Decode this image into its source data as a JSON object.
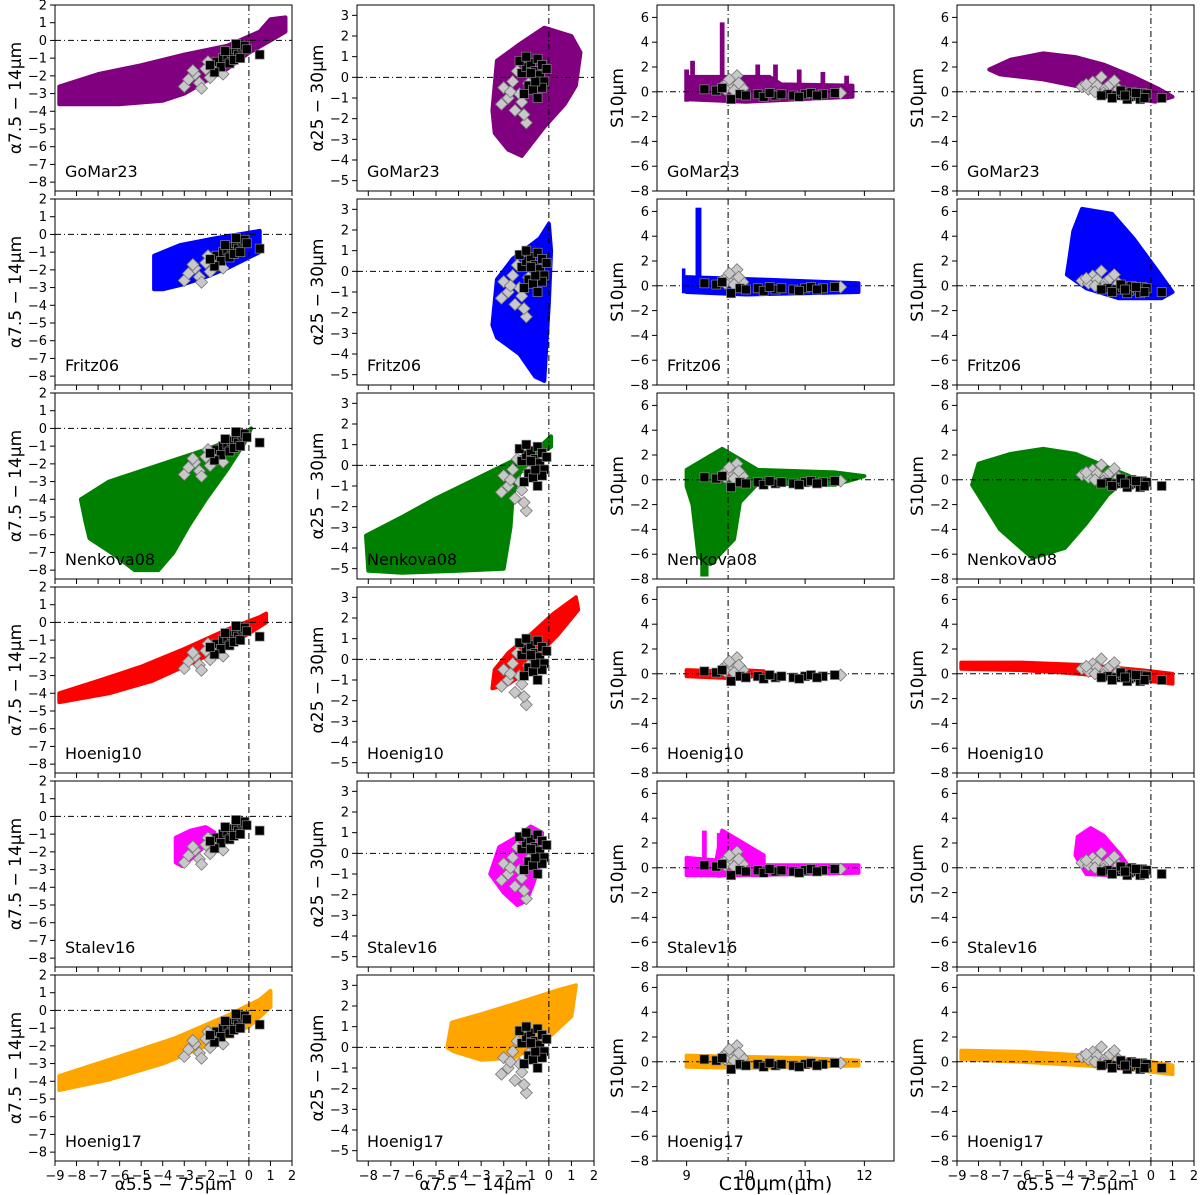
{
  "figure": {
    "model_labels": [
      "GoMar23",
      "Fritz06",
      "Nenkova08",
      "Hoenig10",
      "Stalev16",
      "Hoenig17"
    ],
    "model_colors": [
      "#800080",
      "#0000ff",
      "#008000",
      "#ff0000",
      "#ff00ff",
      "#ffa500"
    ],
    "observed_symbols": {
      "squares": "#000000",
      "diamonds": "#c8c8c8"
    }
  },
  "chart_data": [
    {
      "type": "scatter",
      "column": 1,
      "x_label": "α5.5 − 7.5μm",
      "y_label": "α7.5 − 14μm",
      "xlim": [
        -9,
        2
      ],
      "ylim": [
        -8.5,
        2
      ],
      "x_ticks": [
        -9,
        -8,
        -7,
        -6,
        -5,
        -4,
        -3,
        -2,
        -1,
        0,
        1,
        2
      ],
      "y_ticks": [
        -8,
        -7,
        -6,
        -5,
        -4,
        -3,
        -2,
        -1,
        0,
        1,
        2
      ],
      "ref_lines": {
        "x": 0,
        "y": 0
      },
      "observed_squares": [
        [
          -1.5,
          -1.2
        ],
        [
          -1.2,
          -1.0
        ],
        [
          -1.0,
          -0.9
        ],
        [
          -0.8,
          -0.7
        ],
        [
          -0.6,
          -0.5
        ],
        [
          -0.5,
          -0.8
        ],
        [
          -0.3,
          -0.4
        ],
        [
          -0.2,
          -0.3
        ],
        [
          0.5,
          -0.8
        ],
        [
          -1.3,
          -1.5
        ],
        [
          -0.9,
          -1.3
        ],
        [
          -0.7,
          -1.1
        ],
        [
          -1.6,
          -1.8
        ],
        [
          -1.1,
          -0.6
        ],
        [
          -0.4,
          -1.0
        ],
        [
          -0.1,
          -0.5
        ],
        [
          -1.8,
          -1.4
        ],
        [
          -0.6,
          -0.2
        ]
      ],
      "observed_diamonds": [
        [
          -3.0,
          -2.6
        ],
        [
          -2.8,
          -2.2
        ],
        [
          -2.5,
          -1.9
        ],
        [
          -2.3,
          -2.4
        ],
        [
          -2.0,
          -1.6
        ],
        [
          -1.8,
          -2.1
        ],
        [
          -1.6,
          -1.5
        ],
        [
          -1.4,
          -1.3
        ],
        [
          -2.6,
          -1.7
        ],
        [
          -2.2,
          -2.7
        ],
        [
          -1.2,
          -1.9
        ],
        [
          -1.9,
          -1.2
        ]
      ]
    },
    {
      "type": "scatter",
      "column": 2,
      "x_label": "α7.5 − 14μm",
      "y_label": "α25 − 30μm",
      "xlim": [
        -8.5,
        2
      ],
      "ylim": [
        -5.5,
        3.5
      ],
      "x_ticks": [
        -8,
        -7,
        -6,
        -5,
        -4,
        -3,
        -2,
        -1,
        0,
        1,
        2
      ],
      "y_ticks": [
        -5,
        -4,
        -3,
        -2,
        -1,
        0,
        1,
        2,
        3
      ],
      "ref_lines": {
        "x": 0,
        "y": 0
      },
      "observed_squares": [
        [
          -1.2,
          0.2
        ],
        [
          -1.0,
          0.5
        ],
        [
          -0.8,
          0.7
        ],
        [
          -0.6,
          0.3
        ],
        [
          -0.5,
          0.9
        ],
        [
          -0.4,
          0.1
        ],
        [
          -0.3,
          0.6
        ],
        [
          -0.2,
          -0.2
        ],
        [
          -0.1,
          0.4
        ],
        [
          -0.9,
          -0.4
        ],
        [
          -1.1,
          -0.8
        ],
        [
          -0.7,
          -0.6
        ],
        [
          -1.3,
          0.8
        ],
        [
          -0.5,
          -1.0
        ],
        [
          -0.3,
          -0.5
        ],
        [
          -1.0,
          1.0
        ],
        [
          -0.6,
          -0.2
        ],
        [
          -0.8,
          0.2
        ]
      ],
      "observed_diamonds": [
        [
          -2.0,
          -0.5
        ],
        [
          -1.8,
          -1.0
        ],
        [
          -1.6,
          -0.2
        ],
        [
          -1.5,
          -1.6
        ],
        [
          -1.3,
          -0.8
        ],
        [
          -1.2,
          -1.2
        ],
        [
          -1.0,
          -2.2
        ],
        [
          -0.9,
          -0.3
        ],
        [
          -1.4,
          0.3
        ],
        [
          -1.7,
          -0.7
        ],
        [
          -1.1,
          -1.8
        ],
        [
          -2.1,
          -1.3
        ]
      ]
    },
    {
      "type": "scatter",
      "column": 3,
      "x_label": "C10μm(μm)",
      "y_label": "S10μm",
      "xlim": [
        8.5,
        12.5
      ],
      "ylim": [
        -8,
        7
      ],
      "x_ticks": [
        9,
        10,
        11,
        12
      ],
      "y_ticks": [
        -8,
        -6,
        -4,
        -2,
        0,
        2,
        4,
        6
      ],
      "ref_lines": {
        "x": 9.7,
        "y": 0
      },
      "observed_squares": [
        [
          9.3,
          0.2
        ],
        [
          9.5,
          0.1
        ],
        [
          9.75,
          -0.6
        ],
        [
          9.9,
          -0.2
        ],
        [
          10.0,
          -0.3
        ],
        [
          10.2,
          -0.2
        ],
        [
          10.3,
          -0.4
        ],
        [
          10.5,
          -0.3
        ],
        [
          10.6,
          -0.2
        ],
        [
          10.8,
          -0.3
        ],
        [
          11.0,
          -0.2
        ],
        [
          11.1,
          -0.1
        ],
        [
          11.3,
          -0.2
        ],
        [
          11.5,
          -0.1
        ],
        [
          10.4,
          -0.1
        ],
        [
          10.9,
          -0.4
        ],
        [
          11.2,
          -0.3
        ],
        [
          9.6,
          0.3
        ]
      ],
      "observed_diamonds": [
        [
          9.6,
          0.4
        ],
        [
          9.7,
          0.8
        ],
        [
          9.75,
          0.5
        ],
        [
          9.8,
          0.9
        ],
        [
          9.85,
          1.3
        ],
        [
          9.9,
          0.6
        ],
        [
          9.65,
          0.2
        ],
        [
          9.95,
          0.3
        ],
        [
          9.8,
          0.1
        ],
        [
          11.6,
          -0.1
        ],
        [
          9.72,
          1.0
        ],
        [
          9.88,
          0.7
        ]
      ]
    },
    {
      "type": "scatter",
      "column": 4,
      "x_label": "α5.5 − 7.5μm",
      "y_label": "S10μm",
      "xlim": [
        -9,
        2
      ],
      "ylim": [
        -8,
        7
      ],
      "x_ticks": [
        -9,
        -8,
        -7,
        -6,
        -5,
        -4,
        -3,
        -2,
        -1,
        0,
        1,
        2
      ],
      "y_ticks": [
        -8,
        -6,
        -4,
        -2,
        0,
        2,
        4,
        6
      ],
      "ref_lines": {
        "x": 0,
        "y": 0
      },
      "observed_squares": [
        [
          -2.0,
          -0.2
        ],
        [
          -1.6,
          -0.3
        ],
        [
          -1.3,
          -0.1
        ],
        [
          -1.0,
          -0.4
        ],
        [
          -0.8,
          -0.2
        ],
        [
          -0.6,
          -0.3
        ],
        [
          -0.4,
          -0.1
        ],
        [
          -0.2,
          -0.2
        ],
        [
          0.5,
          -0.5
        ],
        [
          -1.8,
          -0.5
        ],
        [
          -1.1,
          -0.6
        ],
        [
          -0.5,
          -0.6
        ],
        [
          -1.4,
          0.1
        ],
        [
          -0.9,
          0.0
        ],
        [
          -2.3,
          -0.3
        ],
        [
          -0.3,
          -0.5
        ],
        [
          -1.2,
          -0.3
        ],
        [
          -0.7,
          -0.1
        ]
      ],
      "observed_diamonds": [
        [
          -3.2,
          0.4
        ],
        [
          -2.9,
          0.2
        ],
        [
          -2.7,
          0.8
        ],
        [
          -2.5,
          0.5
        ],
        [
          -2.3,
          1.2
        ],
        [
          -2.1,
          0.3
        ],
        [
          -1.9,
          0.6
        ],
        [
          -1.7,
          0.9
        ],
        [
          -2.6,
          0.0
        ],
        [
          -1.5,
          0.2
        ],
        [
          -3.0,
          0.6
        ],
        [
          -2.2,
          -0.1
        ]
      ]
    }
  ]
}
